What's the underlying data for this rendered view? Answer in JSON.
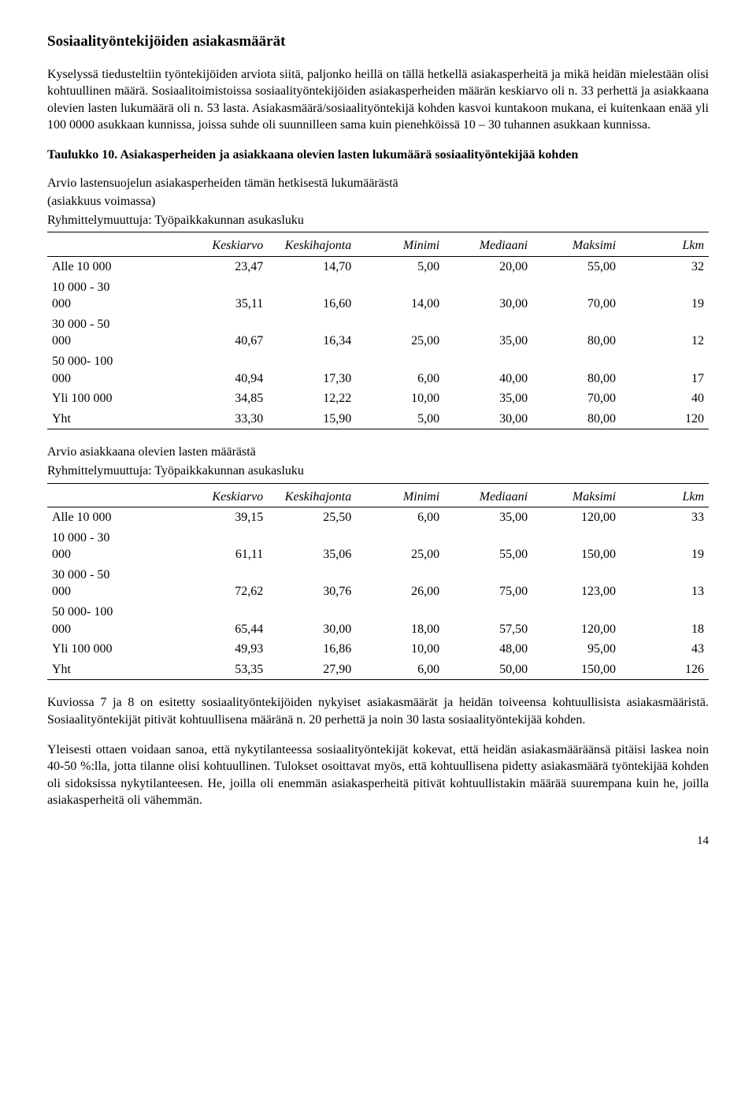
{
  "heading": "Sosiaalityöntekijöiden asiakasmäärät",
  "para1": "Kyselyssä tiedusteltiin työntekijöiden arviota siitä, paljonko heillä on tällä hetkellä asiakasperheitä ja mikä heidän mielestään olisi kohtuullinen määrä. Sosiaalitoimistoissa sosiaalityöntekijöiden asiakasperheiden määrän keskiarvo oli n. 33 perhettä ja asiakkaana olevien lasten lukumäärä oli n. 53 lasta. Asiakasmäärä/sosiaalityöntekijä kohden kasvoi kuntakoon mukana, ei kuitenkaan enää yli 100 0000 asukkaan kunnissa, joissa suhde oli suunnilleen sama kuin pienehköissä 10 – 30 tuhannen asukkaan kunnissa.",
  "tableCaption": "Taulukko 10. Asiakasperheiden ja asiakkaana olevien lasten lukumäärä sosiaalityöntekijää kohden",
  "table1": {
    "arvio1": "Arvio lastensuojelun asiakasperheiden tämän hetkisestä lukumäärästä",
    "arvio2": "(asiakkuus voimassa)",
    "ryhm": "Ryhmittelymuuttuja: Työpaikkakunnan asukasluku",
    "columns": [
      "",
      "Keskiarvo",
      "Keskihajonta",
      "Minimi",
      "Mediaani",
      "Maksimi",
      "Lkm"
    ],
    "rows": [
      [
        "Alle 10 000",
        "23,47",
        "14,70",
        "5,00",
        "20,00",
        "55,00",
        "32"
      ],
      [
        "10 000 - 30\n000",
        "35,11",
        "16,60",
        "14,00",
        "30,00",
        "70,00",
        "19"
      ],
      [
        "30 000 - 50\n000",
        "40,67",
        "16,34",
        "25,00",
        "35,00",
        "80,00",
        "12"
      ],
      [
        "50 000- 100\n000",
        "40,94",
        "17,30",
        "6,00",
        "40,00",
        "80,00",
        "17"
      ],
      [
        "Yli 100 000",
        "34,85",
        "12,22",
        "10,00",
        "35,00",
        "70,00",
        "40"
      ],
      [
        "Yht",
        "33,30",
        "15,90",
        "5,00",
        "30,00",
        "80,00",
        "120"
      ]
    ]
  },
  "table2": {
    "arvio1": "Arvio asiakkaana olevien lasten määrästä",
    "ryhm": "Ryhmittelymuuttuja: Työpaikkakunnan asukasluku",
    "columns": [
      "",
      "Keskiarvo",
      "Keskihajonta",
      "Minimi",
      "Mediaani",
      "Maksimi",
      "Lkm"
    ],
    "rows": [
      [
        "Alle 10 000",
        "39,15",
        "25,50",
        "6,00",
        "35,00",
        "120,00",
        "33"
      ],
      [
        "10 000 - 30\n000",
        "61,11",
        "35,06",
        "25,00",
        "55,00",
        "150,00",
        "19"
      ],
      [
        "30 000 - 50\n000",
        "72,62",
        "30,76",
        "26,00",
        "75,00",
        "123,00",
        "13"
      ],
      [
        "50 000- 100\n000",
        "65,44",
        "30,00",
        "18,00",
        "57,50",
        "120,00",
        "18"
      ],
      [
        "Yli 100 000",
        "49,93",
        "16,86",
        "10,00",
        "48,00",
        "95,00",
        "43"
      ],
      [
        "Yht",
        "53,35",
        "27,90",
        "6,00",
        "50,00",
        "150,00",
        "126"
      ]
    ]
  },
  "para2": "Kuviossa 7 ja 8 on esitetty sosiaalityöntekijöiden nykyiset asiakasmäärät ja heidän toiveensa kohtuullisista asiakasmääristä. Sosiaalityöntekijät pitivät kohtuullisena määränä n. 20 perhettä ja noin 30 lasta  sosiaalityöntekijää kohden.",
  "para3": "Yleisesti ottaen voidaan sanoa, että nykytilanteessa sosiaalityöntekijät kokevat, että heidän asiakasmääräänsä pitäisi laskea noin 40-50 %:lla, jotta tilanne olisi kohtuullinen. Tulokset osoittavat myös, että kohtuullisena pidetty asiakasmäärä työntekijää kohden oli sidoksissa nykytilanteesen. He, joilla oli enemmän asiakasperheitä pitivät kohtuullistakin määrää suurempana kuin he, joilla asiakasperheitä oli vähemmän.",
  "pageNumber": "14"
}
